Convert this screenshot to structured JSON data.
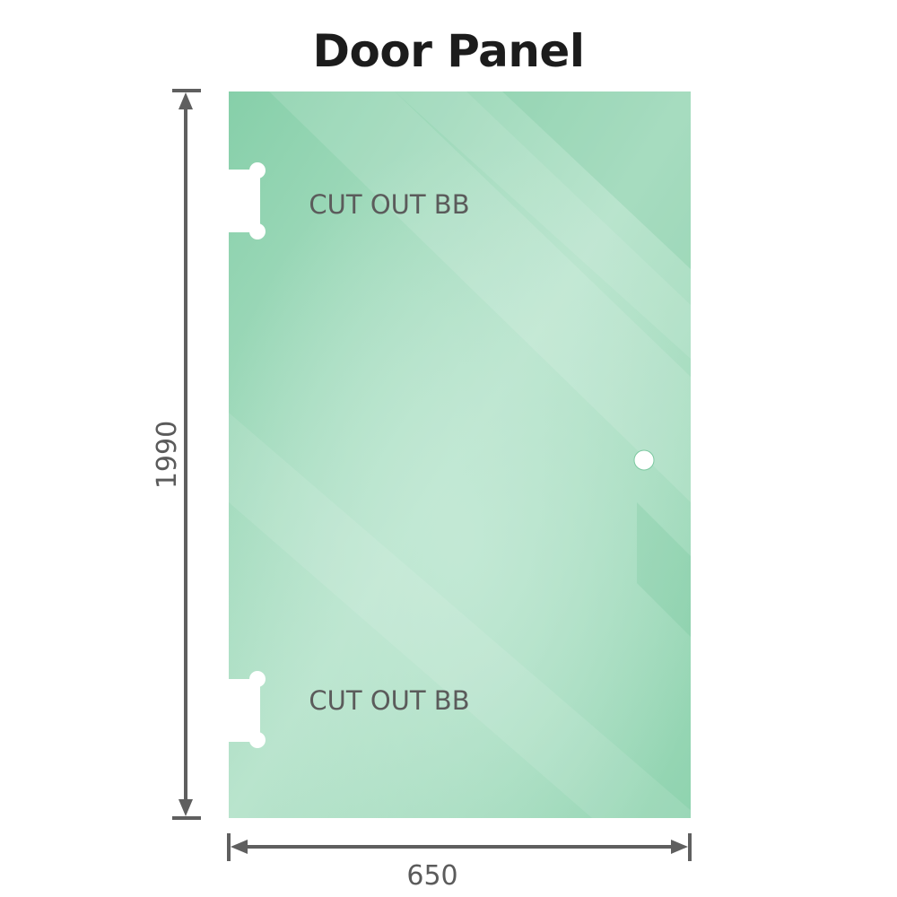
{
  "title": "Door Panel",
  "dimensions": {
    "height": "1990",
    "width": "650"
  },
  "cutouts": [
    {
      "label": "CUT OUT BB"
    },
    {
      "label": "CUT OUT BB"
    }
  ],
  "colors": {
    "glass": "#86cfa9",
    "glass_light": "#bfe6d2",
    "dimension_line": "#5f5f5f",
    "text": "#5b5b5b"
  }
}
